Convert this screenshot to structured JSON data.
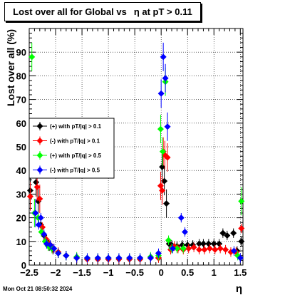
{
  "title": {
    "part1": "Lost over all for Global vs",
    "part2": "η at pT > 0.11"
  },
  "footer": {
    "datestamp": "Mon Oct 21 08:50:32 2024"
  },
  "chart_data": {
    "type": "scatter",
    "title": "Lost over all for Global vs η at pT > 0.11",
    "xlabel": "η",
    "ylabel": "Lost over all (%)",
    "xlim": [
      -2.5,
      1.55
    ],
    "ylim": [
      0,
      100
    ],
    "grid": true,
    "legend_position": "middle-left",
    "x_ticks": [
      -2.5,
      -2,
      -1.5,
      -1,
      -0.5,
      0,
      0.5,
      1,
      1.5
    ],
    "x_tick_labels": [
      "−2.5",
      "−2",
      "−1.5",
      "−1",
      "−0.5",
      "0",
      "0.5",
      "1",
      "1.5"
    ],
    "y_ticks": [
      0,
      10,
      20,
      30,
      40,
      50,
      60,
      70,
      80,
      90
    ],
    "series": [
      {
        "name": "(+) with pT/|q| > 0.1",
        "color": "#000000",
        "points": [
          [
            -2.48,
            31.5
          ],
          [
            -2.37,
            35
          ],
          [
            -2.33,
            27
          ],
          [
            -2.28,
            17
          ],
          [
            -2.22,
            12.5
          ],
          [
            -2.17,
            10
          ],
          [
            -2.12,
            8
          ],
          [
            -2.05,
            6.5
          ],
          [
            -1.95,
            5
          ],
          [
            -1.8,
            4
          ],
          [
            -1.6,
            3
          ],
          [
            -1.4,
            2.5
          ],
          [
            -1.2,
            2.5
          ],
          [
            -1.0,
            2.5
          ],
          [
            -0.8,
            2.5
          ],
          [
            -0.6,
            2.5
          ],
          [
            -0.4,
            2.5
          ],
          [
            -0.2,
            3
          ],
          [
            -0.05,
            3
          ],
          [
            0.02,
            41.5
          ],
          [
            0.06,
            35.5
          ],
          [
            0.1,
            26
          ],
          [
            0.15,
            9
          ],
          [
            0.2,
            8.5
          ],
          [
            0.3,
            8
          ],
          [
            0.4,
            8.5
          ],
          [
            0.5,
            8.5
          ],
          [
            0.6,
            8.5
          ],
          [
            0.72,
            9
          ],
          [
            0.8,
            9
          ],
          [
            0.9,
            9
          ],
          [
            1.0,
            9
          ],
          [
            1.1,
            9
          ],
          [
            1.17,
            13.5
          ],
          [
            1.25,
            12.5
          ],
          [
            1.37,
            13.5
          ],
          [
            1.44,
            6
          ],
          [
            1.52,
            10
          ]
        ]
      },
      {
        "name": "(-) with pT/|q| > 0.1",
        "color": "#ff0000",
        "points": [
          [
            -2.48,
            29
          ],
          [
            -2.35,
            33
          ],
          [
            -2.3,
            28
          ],
          [
            -2.25,
            16
          ],
          [
            -2.18,
            11
          ],
          [
            -2.12,
            9
          ],
          [
            -2.05,
            7
          ],
          [
            -1.95,
            5.5
          ],
          [
            -1.8,
            4
          ],
          [
            -1.6,
            3
          ],
          [
            -1.4,
            2.5
          ],
          [
            -1.2,
            2.5
          ],
          [
            -1.0,
            2.5
          ],
          [
            -0.8,
            2.5
          ],
          [
            -0.6,
            2.5
          ],
          [
            -0.4,
            2.5
          ],
          [
            -0.2,
            3
          ],
          [
            -0.05,
            3
          ],
          [
            -0.01,
            33.5
          ],
          [
            0.02,
            31.5
          ],
          [
            0.04,
            48
          ],
          [
            0.07,
            46.5
          ],
          [
            0.12,
            45.5
          ],
          [
            0.18,
            6.5
          ],
          [
            0.25,
            8
          ],
          [
            0.32,
            7
          ],
          [
            0.42,
            6.5
          ],
          [
            0.52,
            7
          ],
          [
            0.62,
            7.5
          ],
          [
            0.72,
            6.5
          ],
          [
            0.82,
            6.5
          ],
          [
            0.92,
            7
          ],
          [
            1.02,
            6.5
          ],
          [
            1.12,
            7
          ],
          [
            1.22,
            6.5
          ],
          [
            1.32,
            5.5
          ],
          [
            1.42,
            5.5
          ],
          [
            1.52,
            15.5
          ]
        ]
      },
      {
        "name": "(+) with pT/|q| > 0.5",
        "color": "#00ff00",
        "points": [
          [
            -2.45,
            88
          ],
          [
            -2.4,
            22
          ],
          [
            -2.33,
            20
          ],
          [
            -2.27,
            14
          ],
          [
            -2.2,
            10
          ],
          [
            -2.14,
            8
          ],
          [
            -2.07,
            7
          ],
          [
            -1.95,
            5
          ],
          [
            -1.8,
            4
          ],
          [
            -1.6,
            3.5
          ],
          [
            -1.4,
            3
          ],
          [
            -1.2,
            3
          ],
          [
            -1.0,
            3
          ],
          [
            -0.8,
            3
          ],
          [
            -0.6,
            3
          ],
          [
            -0.4,
            3
          ],
          [
            -0.2,
            3.5
          ],
          [
            -0.05,
            4
          ],
          [
            -0.01,
            57.5
          ],
          [
            0.03,
            48
          ],
          [
            0.08,
            77.5
          ],
          [
            0.14,
            10.5
          ],
          [
            0.2,
            7
          ],
          [
            0.3,
            7
          ],
          [
            0.42,
            7
          ],
          [
            1.45,
            4
          ],
          [
            1.52,
            27
          ]
        ]
      },
      {
        "name": "(-) with pT/|q| > 0.5",
        "color": "#0000ff",
        "points": [
          [
            -2.38,
            22
          ],
          [
            -2.32,
            17
          ],
          [
            -2.28,
            20
          ],
          [
            -2.22,
            13
          ],
          [
            -2.17,
            9
          ],
          [
            -2.1,
            8.5
          ],
          [
            -2.03,
            7
          ],
          [
            -1.95,
            5
          ],
          [
            -1.8,
            4
          ],
          [
            -1.6,
            3
          ],
          [
            -1.4,
            3
          ],
          [
            -1.2,
            3
          ],
          [
            -1.0,
            3
          ],
          [
            -0.8,
            3
          ],
          [
            -0.6,
            3
          ],
          [
            -0.4,
            3
          ],
          [
            -0.2,
            3
          ],
          [
            -0.05,
            5
          ],
          [
            0.0,
            72.5
          ],
          [
            0.04,
            88
          ],
          [
            0.08,
            79
          ],
          [
            0.12,
            58.5
          ],
          [
            0.22,
            7
          ],
          [
            0.38,
            20
          ],
          [
            0.45,
            14
          ],
          [
            1.38,
            6
          ],
          [
            1.5,
            3
          ]
        ]
      }
    ]
  }
}
